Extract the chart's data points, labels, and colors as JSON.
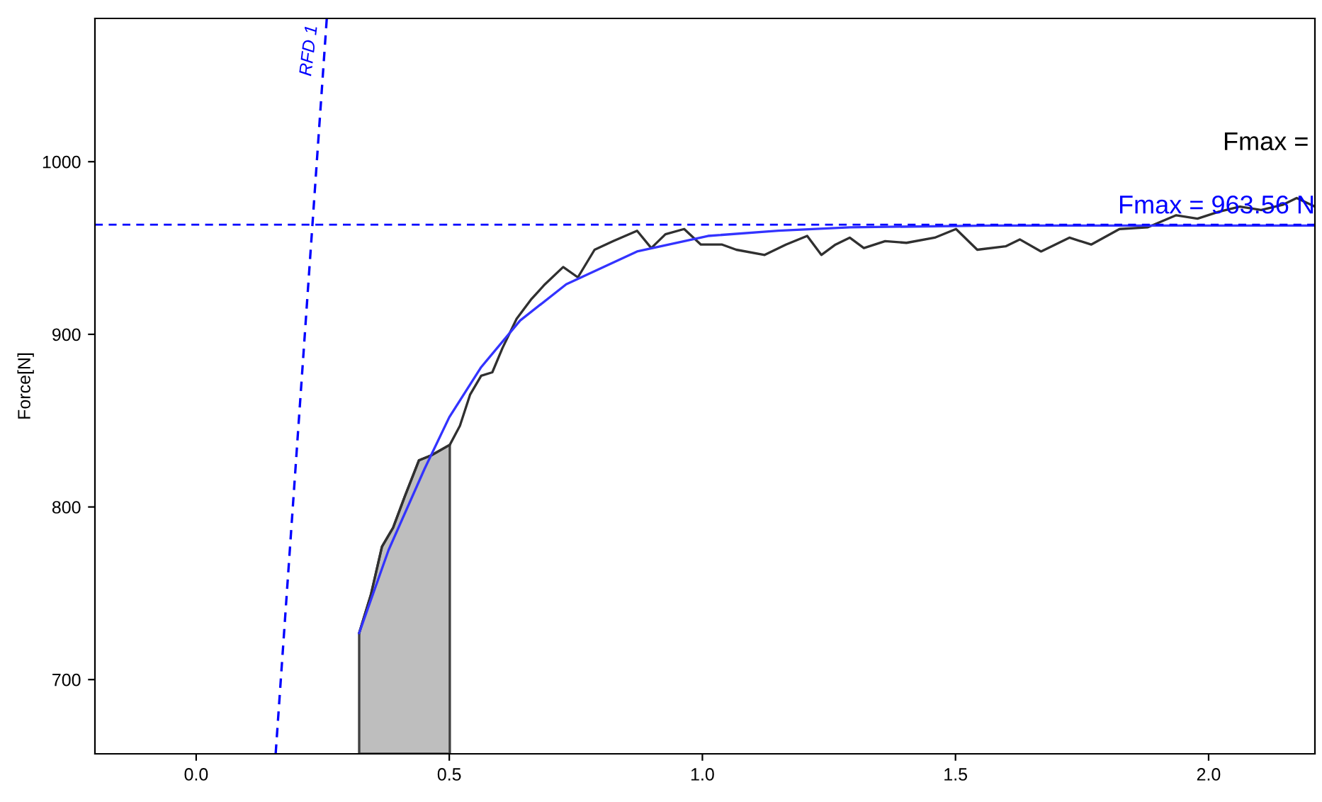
{
  "chart_data": {
    "type": "line",
    "ylabel": "Force[N]",
    "xlim": [
      -0.2,
      2.21
    ],
    "ylim": [
      657,
      1083
    ],
    "xticks": [
      {
        "value": 0,
        "label": "0.0"
      },
      {
        "value": 0.5,
        "label": "0.5"
      },
      {
        "value": 1,
        "label": "1.0"
      },
      {
        "value": 1.5,
        "label": "1.5"
      },
      {
        "value": 2,
        "label": "2.0"
      }
    ],
    "yticks": [
      700,
      800,
      900,
      1000
    ],
    "grid": false,
    "legend": false,
    "series": [
      {
        "type": "area",
        "color": "#bebebe",
        "x": [
          0.322,
          0.345,
          0.367,
          0.389,
          0.412,
          0.44,
          0.465,
          0.501
        ],
        "values": [
          727,
          749,
          777,
          788,
          806,
          827,
          830,
          836
        ]
      },
      {
        "color": "#303030",
        "line_style": "solid",
        "x": [
          0.322,
          0.345,
          0.367,
          0.389,
          0.412,
          0.44,
          0.465,
          0.501,
          0.521,
          0.541,
          0.563,
          0.585,
          0.605,
          0.633,
          0.661,
          0.689,
          0.725,
          0.754,
          0.787,
          0.824,
          0.871,
          0.899,
          0.927,
          0.964,
          0.997,
          1.039,
          1.067,
          1.123,
          1.165,
          1.207,
          1.235,
          1.263,
          1.291,
          1.319,
          1.361,
          1.403,
          1.459,
          1.501,
          1.543,
          1.599,
          1.627,
          1.669,
          1.725,
          1.768,
          1.824,
          1.88,
          1.936,
          1.978,
          2.02,
          2.062,
          2.104,
          2.146,
          2.174,
          2.21
        ],
        "values": [
          727,
          749,
          777,
          788,
          806,
          827,
          830,
          836,
          847,
          865,
          876,
          878,
          892,
          909,
          920,
          929,
          939,
          933,
          949,
          954,
          960,
          950,
          958,
          961,
          952,
          952,
          949,
          946,
          952,
          957,
          946,
          952,
          956,
          950,
          954,
          953,
          956,
          961,
          949,
          951,
          955,
          948,
          956,
          952,
          961,
          962,
          969,
          967,
          971,
          974,
          972,
          975,
          979,
          974
        ]
      },
      {
        "color": "#3333ff",
        "line_style": "solid",
        "x": [
          0.322,
          0.38,
          0.451,
          0.5,
          0.563,
          0.64,
          0.731,
          0.871,
          1.011,
          1.15,
          1.291,
          1.571,
          1.9,
          2.21
        ],
        "values": [
          727,
          775,
          822,
          852,
          881,
          908,
          929,
          948,
          957,
          960,
          962,
          963,
          963,
          963
        ]
      },
      {
        "name": "RFD 1",
        "color": "#0000ff",
        "line_style": "dashed",
        "x": [
          0.157,
          0.258
        ],
        "values": [
          657,
          1083
        ]
      }
    ],
    "ref_lines": [
      {
        "axis": "y",
        "value": 963.56,
        "label": "Fmax = 963.56 N",
        "color": "#0000ff",
        "line_style": "dashed"
      }
    ],
    "annotations": [
      "Fmax ="
    ]
  }
}
